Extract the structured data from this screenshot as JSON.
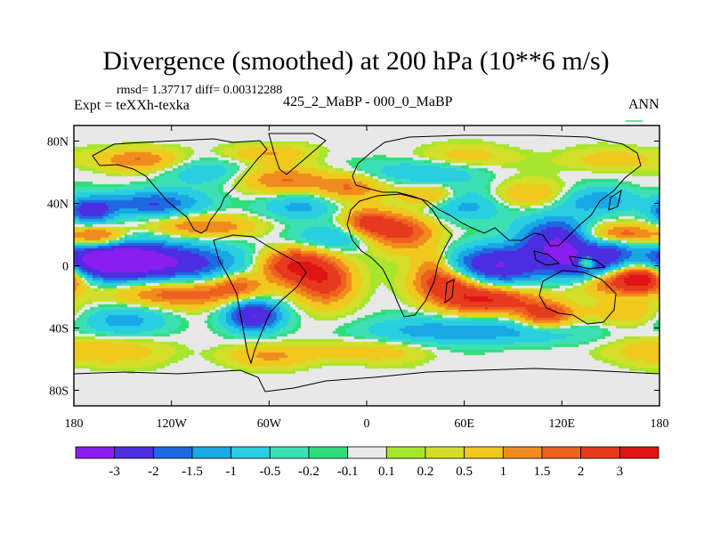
{
  "title": "Divergence (smoothed) at 200 hPa (10**6 m/s)",
  "stats": "rmsd= 1.37717 diff= 0.00312288",
  "experiment": "Expt = teXXh-texka",
  "subtitle": "425_2_MaBP - 000_0_MaBP",
  "season": "ANN",
  "chart_data": {
    "type": "heatmap",
    "title": "Divergence (smoothed) at 200 hPa (10**6 m/s)",
    "subtitle": "425_2_MaBP - 000_0_MaBP",
    "season": "ANN",
    "units": "10**6 m/s",
    "x_axis": {
      "range": [
        -180,
        180
      ],
      "ticks": [
        -180,
        -120,
        -60,
        0,
        60,
        120,
        180
      ],
      "tick_labels": [
        "180",
        "120W",
        "60W",
        "0",
        "60E",
        "120E",
        "180"
      ]
    },
    "y_axis": {
      "range": [
        -90,
        90
      ],
      "ticks": [
        80,
        40,
        0,
        -40,
        -80
      ],
      "tick_labels": [
        "80N",
        "40N",
        "0",
        "40S",
        "80S"
      ]
    },
    "colorbar": {
      "levels": [
        "-3",
        "-2",
        "-1.5",
        "-1",
        "-0.5",
        "-0.2",
        "-0.1",
        "0.1",
        "0.2",
        "0.5",
        "1",
        "1.5",
        "2",
        "3"
      ],
      "colors": [
        "#8a1ef0",
        "#4b2ee0",
        "#1e69e0",
        "#1aa7e6",
        "#27cfe0",
        "#3de0b4",
        "#2ede7a",
        "#e8e8e8",
        "#a6e62d",
        "#d2de28",
        "#f0c81e",
        "#f08c1e",
        "#ee6020",
        "#e63a1e",
        "#e01414"
      ]
    },
    "features": [
      {
        "lon": -130,
        "lat": 2,
        "value": -3,
        "sx": 35,
        "sy": 9
      },
      {
        "lon": -160,
        "lat": 5,
        "value": -2.5,
        "sx": 20,
        "sy": 9
      },
      {
        "lon": -70,
        "lat": -32,
        "value": -3,
        "sx": 12,
        "sy": 7
      },
      {
        "lon": 80,
        "lat": 0,
        "value": -3,
        "sx": 20,
        "sy": 9
      },
      {
        "lon": 118,
        "lat": 15,
        "value": -3,
        "sx": 16,
        "sy": 11
      },
      {
        "lon": 135,
        "lat": -2,
        "value": -2.5,
        "sx": 14,
        "sy": 8
      },
      {
        "lon": 152,
        "lat": 12,
        "value": -1.5,
        "sx": 10,
        "sy": 8
      },
      {
        "lon": -130,
        "lat": 40,
        "value": -2,
        "sx": 22,
        "sy": 6
      },
      {
        "lon": -170,
        "lat": 35,
        "value": -2.5,
        "sx": 10,
        "sy": 6
      },
      {
        "lon": 60,
        "lat": 40,
        "value": -1.5,
        "sx": 18,
        "sy": 8
      },
      {
        "lon": -40,
        "lat": 38,
        "value": -1.2,
        "sx": 16,
        "sy": 6
      },
      {
        "lon": 140,
        "lat": 42,
        "value": -1.5,
        "sx": 18,
        "sy": 6
      },
      {
        "lon": -150,
        "lat": -35,
        "value": -1.2,
        "sx": 20,
        "sy": 7
      },
      {
        "lon": 40,
        "lat": -42,
        "value": -1.2,
        "sx": 30,
        "sy": 6
      },
      {
        "lon": 100,
        "lat": -42,
        "value": -1.0,
        "sx": 30,
        "sy": 6
      },
      {
        "lon": -20,
        "lat": 18,
        "value": -1.2,
        "sx": 20,
        "sy": 6
      },
      {
        "lon": 30,
        "lat": 60,
        "value": -1.0,
        "sx": 25,
        "sy": 6
      },
      {
        "lon": -100,
        "lat": 60,
        "value": -0.8,
        "sx": 20,
        "sy": 6
      },
      {
        "lon": -165,
        "lat": 18,
        "value": 2.5,
        "sx": 12,
        "sy": 5
      },
      {
        "lon": 155,
        "lat": 20,
        "value": 2.5,
        "sx": 15,
        "sy": 5
      },
      {
        "lon": -115,
        "lat": -18,
        "value": 2,
        "sx": 30,
        "sy": 6
      },
      {
        "lon": -45,
        "lat": 0,
        "value": 3,
        "sx": 14,
        "sy": 8
      },
      {
        "lon": -25,
        "lat": -10,
        "value": 2.5,
        "sx": 12,
        "sy": 10
      },
      {
        "lon": 20,
        "lat": 22,
        "value": 2.5,
        "sx": 15,
        "sy": 8
      },
      {
        "lon": 0,
        "lat": 28,
        "value": 2,
        "sx": 10,
        "sy": 6
      },
      {
        "lon": 75,
        "lat": -22,
        "value": 3,
        "sx": 20,
        "sy": 6
      },
      {
        "lon": 50,
        "lat": -12,
        "value": 2.5,
        "sx": 14,
        "sy": 7
      },
      {
        "lon": 110,
        "lat": -32,
        "value": 2.5,
        "sx": 12,
        "sy": 6
      },
      {
        "lon": 150,
        "lat": -10,
        "value": 2.5,
        "sx": 18,
        "sy": 6
      },
      {
        "lon": 170,
        "lat": -8,
        "value": 3,
        "sx": 10,
        "sy": 6
      },
      {
        "lon": -100,
        "lat": 25,
        "value": 1.5,
        "sx": 25,
        "sy": 5
      },
      {
        "lon": -50,
        "lat": 55,
        "value": 1.5,
        "sx": 20,
        "sy": 6
      },
      {
        "lon": -10,
        "lat": 50,
        "value": 1.5,
        "sx": 14,
        "sy": 6
      },
      {
        "lon": 40,
        "lat": 45,
        "value": 1.5,
        "sx": 14,
        "sy": 5
      },
      {
        "lon": 100,
        "lat": 45,
        "value": 1.2,
        "sx": 20,
        "sy": 6
      },
      {
        "lon": -80,
        "lat": -12,
        "value": 1.5,
        "sx": 10,
        "sy": 5
      },
      {
        "lon": -170,
        "lat": -55,
        "value": 1.0,
        "sx": 30,
        "sy": 6
      },
      {
        "lon": 0,
        "lat": -55,
        "value": 0.8,
        "sx": 25,
        "sy": 5
      },
      {
        "lon": -60,
        "lat": -58,
        "value": 1.0,
        "sx": 20,
        "sy": 5
      },
      {
        "lon": 160,
        "lat": -30,
        "value": 1.0,
        "sx": 15,
        "sy": 6
      },
      {
        "lon": -140,
        "lat": 68,
        "value": 1.5,
        "sx": 18,
        "sy": 5
      },
      {
        "lon": -60,
        "lat": 72,
        "value": 1.0,
        "sx": 18,
        "sy": 4
      },
      {
        "lon": 60,
        "lat": 70,
        "value": 0.8,
        "sx": 20,
        "sy": 5
      },
      {
        "lon": 150,
        "lat": 68,
        "value": 0.8,
        "sx": 20,
        "sy": 5
      },
      {
        "lon": 40,
        "lat": 0,
        "value": 1.2,
        "sx": 8,
        "sy": 8
      },
      {
        "lon": 135,
        "lat": 2,
        "value": 3,
        "sx": 4,
        "sy": 3
      }
    ]
  }
}
